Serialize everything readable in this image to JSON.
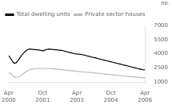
{
  "chart_data": {
    "type": "line",
    "ylabel": "no.",
    "categories": [
      "Apr\n2000",
      null,
      null,
      null,
      null,
      null,
      null,
      null,
      null,
      null,
      null,
      null,
      null,
      null,
      null,
      null,
      null,
      null,
      "Oct\n2001",
      null,
      null,
      null,
      null,
      null,
      null,
      null,
      null,
      null,
      null,
      null,
      null,
      null,
      null,
      null,
      null,
      null,
      "Apr\n2003",
      null,
      null,
      null,
      null,
      null,
      null,
      null,
      null,
      null,
      null,
      null,
      null,
      null,
      null,
      null,
      null,
      null,
      "Oct\n2004",
      null,
      null,
      null,
      null,
      null,
      null,
      null,
      null,
      null,
      null,
      null,
      null,
      null,
      null,
      null,
      null,
      null,
      "Apr\n2006"
    ],
    "series": [
      {
        "name": "Total dwelling units",
        "color": "#000000",
        "values": [
          3800,
          3500,
          3200,
          3000,
          3050,
          3300,
          3600,
          3900,
          4100,
          4300,
          4450,
          4500,
          4480,
          4460,
          4440,
          4420,
          4400,
          4350,
          4300,
          4400,
          4450,
          4500,
          4480,
          4460,
          4440,
          4420,
          4400,
          4380,
          4350,
          4300,
          4250,
          4200,
          4150,
          4100,
          4050,
          4000,
          3980,
          3960,
          3940,
          3900,
          3850,
          3800,
          3750,
          3700,
          3650,
          3600,
          3550,
          3500,
          3450,
          3400,
          3350,
          3300,
          3250,
          3200,
          3150,
          3100,
          3050,
          3000,
          2950,
          2900,
          2850,
          2800,
          2750,
          2700,
          2650,
          2600,
          2550,
          2500,
          2450,
          2400,
          2350,
          2300,
          2300
        ]
      },
      {
        "name": "Private sector houses",
        "color": "#bbbbbb",
        "values": [
          2050,
          1900,
          1700,
          1550,
          1500,
          1550,
          1650,
          1800,
          1950,
          2100,
          2200,
          2300,
          2350,
          2400,
          2430,
          2450,
          2460,
          2450,
          2430,
          2450,
          2460,
          2450,
          2430,
          2410,
          2390,
          2370,
          2350,
          2330,
          2310,
          2290,
          2270,
          2250,
          2230,
          2210,
          2190,
          2170,
          2150,
          2130,
          2110,
          2090,
          2070,
          2050,
          2030,
          2010,
          1990,
          1970,
          1950,
          1930,
          1910,
          1890,
          1870,
          1850,
          1830,
          1810,
          1790,
          1770,
          1750,
          1730,
          1710,
          1690,
          1670,
          1650,
          1630,
          1610,
          1590,
          1570,
          1550,
          1530,
          1510,
          1490,
          1470,
          1450,
          1450
        ]
      }
    ],
    "ylim": [
      1000,
      7000
    ],
    "yticks": [
      1000,
      2500,
      4000,
      5500,
      7000
    ],
    "legend": "upper left",
    "grid": false
  }
}
